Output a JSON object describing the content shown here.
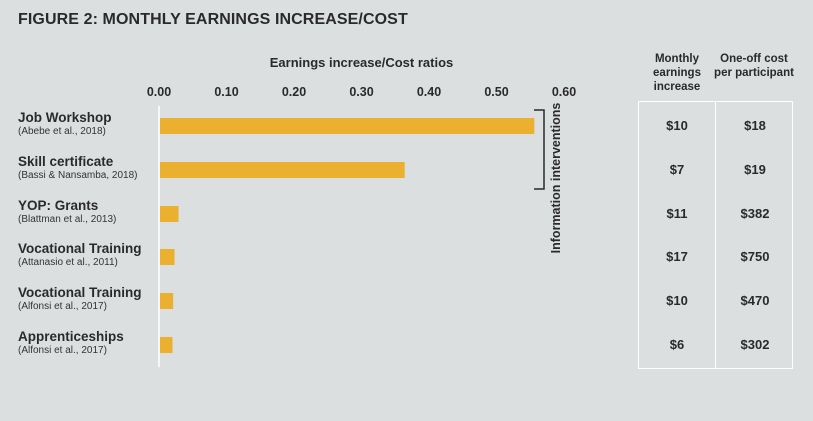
{
  "figure_title": "FIGURE 2: MONTHLY EARNINGS INCREASE/COST",
  "table": {
    "headers": [
      "Monthly earnings increase",
      "One-off cost per participant"
    ],
    "rows": [
      [
        "$10",
        "$18"
      ],
      [
        "$7",
        "$19"
      ],
      [
        "$11",
        "$382"
      ],
      [
        "$17",
        "$750"
      ],
      [
        "$10",
        "$470"
      ],
      [
        "$6",
        "$302"
      ]
    ]
  },
  "chart_data": {
    "type": "bar",
    "orientation": "horizontal",
    "title": "FIGURE 2: MONTHLY EARNINGS INCREASE/COST",
    "xlabel": "Earnings increase/Cost ratios",
    "xlim": [
      0,
      0.6
    ],
    "xticks": [
      "0.00",
      "0.10",
      "0.20",
      "0.30",
      "0.40",
      "0.50",
      "0.60"
    ],
    "xtick_values": [
      0,
      0.1,
      0.2,
      0.3,
      0.4,
      0.5,
      0.6
    ],
    "categories": [
      {
        "name": "Job Workshop",
        "source": "(Abebe et al., 2018)"
      },
      {
        "name": "Skill certificate",
        "source": "(Bassi & Nansamba, 2018)"
      },
      {
        "name": "YOP: Grants",
        "source": "(Blattman et al., 2013)"
      },
      {
        "name": "Vocational Training",
        "source": "(Attanasio et al., 2011)"
      },
      {
        "name": "Vocational Training",
        "source": "(Alfonsi et al., 2017)"
      },
      {
        "name": "Apprenticeships",
        "source": "(Alfonsi et al., 2017)"
      }
    ],
    "values": [
      0.556,
      0.364,
      0.029,
      0.023,
      0.021,
      0.02
    ],
    "bar_color": "#ebb02f",
    "grid": false,
    "annotations": [
      {
        "text": "Information interventions",
        "spans": [
          0,
          1
        ]
      }
    ]
  }
}
